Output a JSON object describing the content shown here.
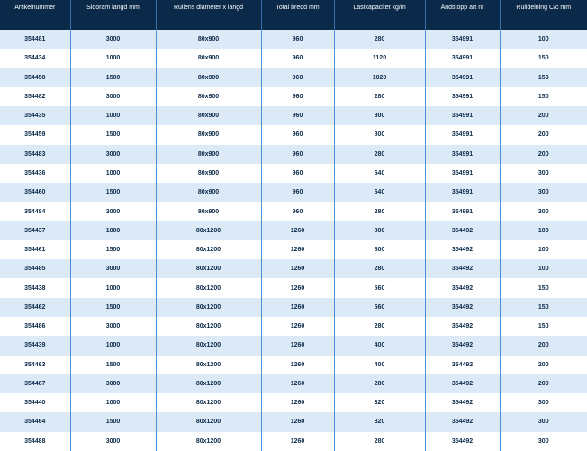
{
  "columns": [
    "Artikelnummer",
    "Sidoram längd mm",
    "Rullens diameter x längd",
    "Total bredd mm",
    "Lastkapacitet kg/m",
    "Ändstopp art nr",
    "Rulldelning C/c mm"
  ],
  "rows": [
    [
      "354481",
      "3000",
      "80x900",
      "960",
      "280",
      "354991",
      "100"
    ],
    [
      "354434",
      "1000",
      "80x900",
      "960",
      "1120",
      "354991",
      "150"
    ],
    [
      "354458",
      "1500",
      "80x900",
      "960",
      "1020",
      "354991",
      "150"
    ],
    [
      "354482",
      "3000",
      "80x900",
      "960",
      "280",
      "354991",
      "150"
    ],
    [
      "354435",
      "1000",
      "80x900",
      "960",
      "800",
      "354991",
      "200"
    ],
    [
      "354459",
      "1500",
      "80x900",
      "960",
      "800",
      "354991",
      "200"
    ],
    [
      "354483",
      "3000",
      "80x900",
      "960",
      "280",
      "354991",
      "200"
    ],
    [
      "354436",
      "1000",
      "80x900",
      "960",
      "640",
      "354991",
      "300"
    ],
    [
      "354460",
      "1500",
      "80x900",
      "960",
      "640",
      "354991",
      "300"
    ],
    [
      "354484",
      "3000",
      "80x900",
      "960",
      "280",
      "354991",
      "300"
    ],
    [
      "354437",
      "1000",
      "80x1200",
      "1260",
      "800",
      "354492",
      "100"
    ],
    [
      "354461",
      "1500",
      "80x1200",
      "1260",
      "800",
      "354492",
      "100"
    ],
    [
      "354485",
      "3000",
      "80x1200",
      "1260",
      "280",
      "354492",
      "100"
    ],
    [
      "354438",
      "1000",
      "80x1200",
      "1260",
      "560",
      "354492",
      "150"
    ],
    [
      "354462",
      "1500",
      "80x1200",
      "1260",
      "560",
      "354492",
      "150"
    ],
    [
      "354486",
      "3000",
      "80x1200",
      "1260",
      "280",
      "354492",
      "150"
    ],
    [
      "354439",
      "1000",
      "80x1200",
      "1260",
      "400",
      "354492",
      "200"
    ],
    [
      "354463",
      "1500",
      "80x1200",
      "1260",
      "400",
      "354492",
      "200"
    ],
    [
      "354487",
      "3000",
      "80x1200",
      "1260",
      "280",
      "354492",
      "200"
    ],
    [
      "354440",
      "1000",
      "80x1200",
      "1260",
      "320",
      "354492",
      "300"
    ],
    [
      "354464",
      "1500",
      "80x1200",
      "1260",
      "320",
      "354492",
      "300"
    ],
    [
      "354488",
      "3000",
      "80x1200",
      "1260",
      "280",
      "354492",
      "300"
    ]
  ]
}
